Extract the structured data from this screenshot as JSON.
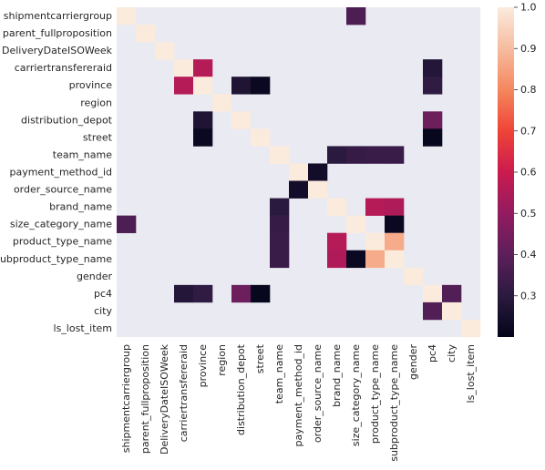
{
  "chart_data": {
    "type": "heatmap",
    "title": "",
    "xlabel": "",
    "ylabel": "",
    "labels": [
      "shipmentcarriergroup",
      "parent_fullproposition",
      "DeliveryDateISOWeek",
      "carriertransfereraid",
      "province",
      "region",
      "distribution_depot",
      "street",
      "team_name",
      "payment_method_id",
      "order_source_name",
      "brand_name",
      "size_category_name",
      "product_type_name",
      "subproduct_type_name",
      "gender",
      "pc4",
      "city",
      "ls_lost_item"
    ],
    "colorbar": {
      "min": 0.2,
      "max": 1.0,
      "ticks": [
        "0.3",
        "0.4",
        "0.5",
        "0.6",
        "0.7",
        "0.8",
        "0.9",
        "1.0"
      ],
      "tick_values": [
        0.3,
        0.4,
        0.5,
        0.6,
        0.7,
        0.8,
        0.9,
        1.0
      ]
    },
    "background": "#eaeaf2",
    "colormap": "rocket",
    "cells": [
      {
        "row": 0,
        "col": 0,
        "value": 1.0
      },
      {
        "row": 0,
        "col": 12,
        "value": 0.37
      },
      {
        "row": 1,
        "col": 1,
        "value": 1.0
      },
      {
        "row": 2,
        "col": 2,
        "value": 1.0
      },
      {
        "row": 3,
        "col": 3,
        "value": 1.0
      },
      {
        "row": 3,
        "col": 4,
        "value": 0.56
      },
      {
        "row": 3,
        "col": 16,
        "value": 0.28
      },
      {
        "row": 4,
        "col": 3,
        "value": 0.56
      },
      {
        "row": 4,
        "col": 4,
        "value": 1.0
      },
      {
        "row": 4,
        "col": 6,
        "value": 0.27
      },
      {
        "row": 4,
        "col": 7,
        "value": 0.22
      },
      {
        "row": 4,
        "col": 16,
        "value": 0.31
      },
      {
        "row": 5,
        "col": 5,
        "value": 1.0
      },
      {
        "row": 6,
        "col": 4,
        "value": 0.27
      },
      {
        "row": 6,
        "col": 6,
        "value": 1.0
      },
      {
        "row": 6,
        "col": 16,
        "value": 0.43
      },
      {
        "row": 7,
        "col": 4,
        "value": 0.22
      },
      {
        "row": 7,
        "col": 7,
        "value": 1.0
      },
      {
        "row": 7,
        "col": 16,
        "value": 0.21
      },
      {
        "row": 8,
        "col": 8,
        "value": 1.0
      },
      {
        "row": 8,
        "col": 11,
        "value": 0.3
      },
      {
        "row": 8,
        "col": 12,
        "value": 0.32
      },
      {
        "row": 8,
        "col": 13,
        "value": 0.33
      },
      {
        "row": 8,
        "col": 14,
        "value": 0.33
      },
      {
        "row": 9,
        "col": 9,
        "value": 1.0
      },
      {
        "row": 9,
        "col": 10,
        "value": 0.24
      },
      {
        "row": 10,
        "col": 9,
        "value": 0.24
      },
      {
        "row": 10,
        "col": 10,
        "value": 1.0
      },
      {
        "row": 11,
        "col": 8,
        "value": 0.3
      },
      {
        "row": 11,
        "col": 11,
        "value": 1.0
      },
      {
        "row": 11,
        "col": 13,
        "value": 0.56
      },
      {
        "row": 11,
        "col": 14,
        "value": 0.55
      },
      {
        "row": 12,
        "col": 0,
        "value": 0.37
      },
      {
        "row": 12,
        "col": 8,
        "value": 0.32
      },
      {
        "row": 12,
        "col": 12,
        "value": 1.0
      },
      {
        "row": 12,
        "col": 14,
        "value": 0.22
      },
      {
        "row": 13,
        "col": 8,
        "value": 0.33
      },
      {
        "row": 13,
        "col": 11,
        "value": 0.56
      },
      {
        "row": 13,
        "col": 13,
        "value": 1.0
      },
      {
        "row": 13,
        "col": 14,
        "value": 0.87
      },
      {
        "row": 14,
        "col": 8,
        "value": 0.33
      },
      {
        "row": 14,
        "col": 11,
        "value": 0.55
      },
      {
        "row": 14,
        "col": 12,
        "value": 0.22
      },
      {
        "row": 14,
        "col": 13,
        "value": 0.87
      },
      {
        "row": 14,
        "col": 14,
        "value": 1.0
      },
      {
        "row": 15,
        "col": 15,
        "value": 1.0
      },
      {
        "row": 16,
        "col": 3,
        "value": 0.28
      },
      {
        "row": 16,
        "col": 4,
        "value": 0.31
      },
      {
        "row": 16,
        "col": 6,
        "value": 0.43
      },
      {
        "row": 16,
        "col": 7,
        "value": 0.21
      },
      {
        "row": 16,
        "col": 16,
        "value": 1.0
      },
      {
        "row": 16,
        "col": 17,
        "value": 0.38
      },
      {
        "row": 17,
        "col": 16,
        "value": 0.38
      },
      {
        "row": 17,
        "col": 17,
        "value": 1.0
      },
      {
        "row": 18,
        "col": 18,
        "value": 1.0
      }
    ]
  }
}
